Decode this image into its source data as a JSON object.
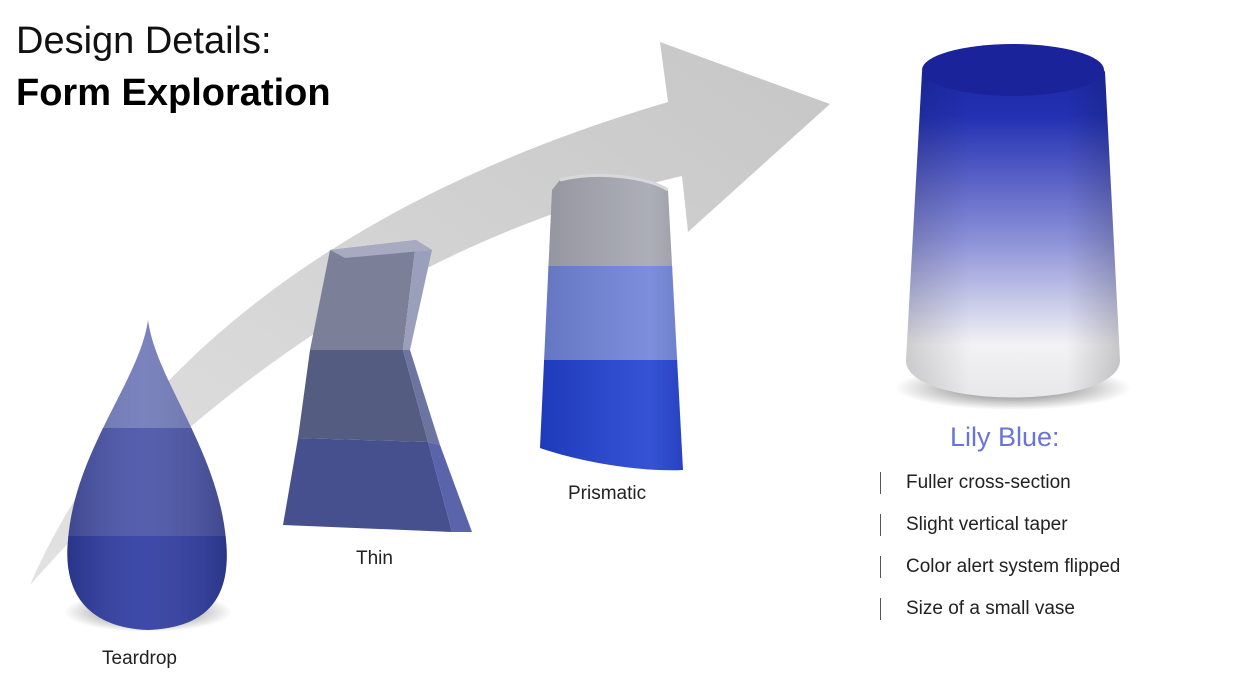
{
  "heading": {
    "line1": "Design Details:",
    "line2": "Form Exploration"
  },
  "forms": {
    "teardrop": "Teardrop",
    "thin": "Thin",
    "prismatic": "Prismatic"
  },
  "final": {
    "title": "Lily Blue:",
    "bullets": [
      "Fuller cross-section",
      "Slight vertical taper",
      "Color alert system flipped",
      "Size of a small vase"
    ]
  },
  "colors": {
    "arrow": "#cfcfcf",
    "lily_blue": "#1d2aa8",
    "title_accent": "#6b73d8"
  }
}
